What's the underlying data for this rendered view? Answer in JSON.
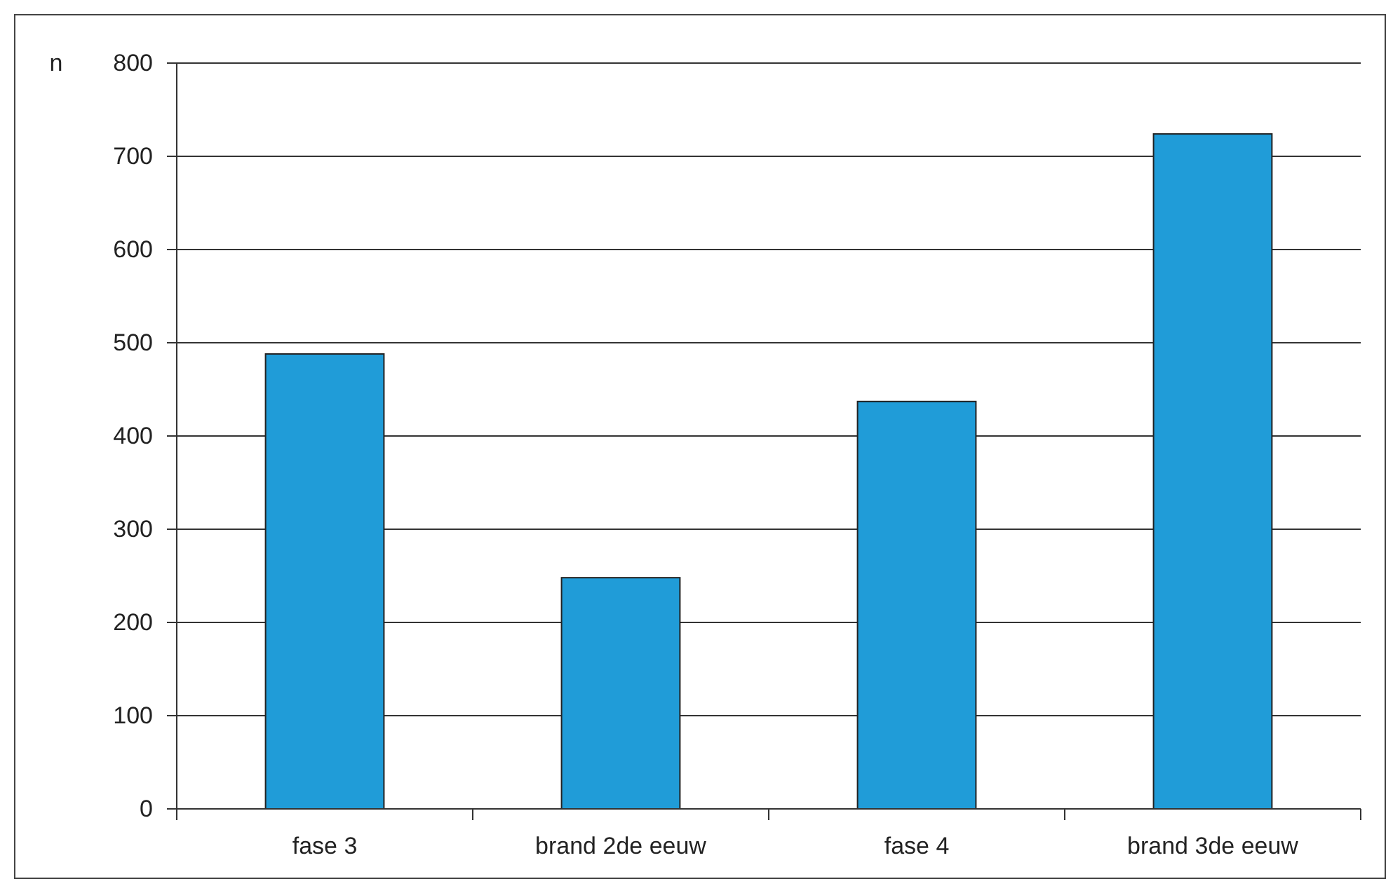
{
  "chart_data": {
    "type": "bar",
    "ylabel": "n",
    "categories": [
      "fase 3",
      "brand 2de eeuw",
      "fase 4",
      "brand 3de eeuw"
    ],
    "values": [
      488,
      248,
      437,
      724
    ],
    "color": "#209cd8",
    "ylim": [
      0,
      800
    ],
    "yticks": [
      0,
      100,
      200,
      300,
      400,
      500,
      600,
      700,
      800
    ],
    "grid": "y"
  }
}
